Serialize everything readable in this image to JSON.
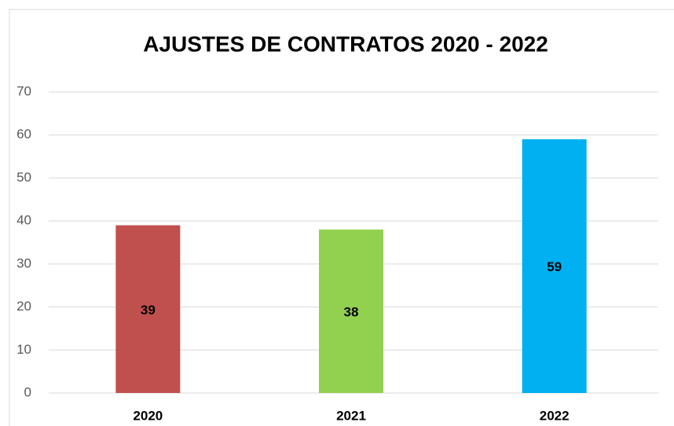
{
  "chart_data": {
    "type": "bar",
    "title": "AJUSTES DE CONTRATOS 2020 - 2022",
    "categories": [
      "2020",
      "2021",
      "2022"
    ],
    "values": [
      39,
      38,
      59
    ],
    "colors": [
      "#c0504d",
      "#92d050",
      "#00b0f0"
    ],
    "ylim": [
      0,
      70
    ],
    "yticks": [
      0,
      10,
      20,
      30,
      40,
      50,
      60,
      70
    ],
    "grid": true
  }
}
